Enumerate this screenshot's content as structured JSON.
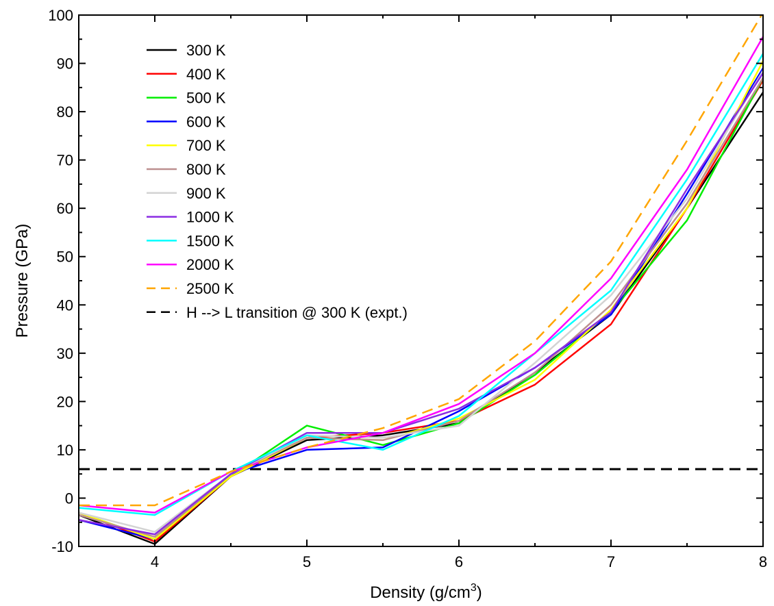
{
  "chart_data": {
    "type": "line",
    "title": "",
    "xlabel": "Density (g/cm",
    "xlabel_sup": "3",
    "xlabel_close": ")",
    "ylabel": "Pressure (GPa)",
    "xlim": [
      3.5,
      8
    ],
    "ylim": [
      -10,
      100
    ],
    "x_ticks": [
      4,
      5,
      6,
      7,
      8
    ],
    "y_ticks": [
      -10,
      0,
      10,
      20,
      30,
      40,
      50,
      60,
      70,
      80,
      90,
      100
    ],
    "grid": false,
    "legend_position": "top-left",
    "x": [
      3.5,
      4.0,
      4.5,
      5.0,
      5.5,
      6.0,
      6.5,
      7.0,
      7.5,
      8.0
    ],
    "series": [
      {
        "name": "300 K",
        "color": "#000000",
        "dash": "solid",
        "values": [
          -3.5,
          -9.5,
          4.5,
          12.0,
          13.0,
          15.5,
          26.0,
          38.0,
          60.0,
          84.0
        ]
      },
      {
        "name": "400 K",
        "color": "#ff0000",
        "dash": "solid",
        "values": [
          -3.0,
          -9.0,
          4.5,
          12.5,
          13.5,
          16.0,
          23.5,
          36.0,
          60.0,
          86.5
        ]
      },
      {
        "name": "500 K",
        "color": "#00ee00",
        "dash": "solid",
        "values": [
          -3.0,
          -8.5,
          4.5,
          15.0,
          11.0,
          15.5,
          25.5,
          38.5,
          57.5,
          87.0
        ]
      },
      {
        "name": "600 K",
        "color": "#0000ff",
        "dash": "solid",
        "values": [
          -4.5,
          -8.5,
          5.0,
          10.0,
          10.5,
          18.0,
          27.0,
          38.0,
          63.0,
          89.0
        ]
      },
      {
        "name": "700 K",
        "color": "#ffff00",
        "dash": "solid",
        "values": [
          -3.0,
          -8.5,
          4.5,
          12.5,
          12.0,
          16.5,
          24.5,
          39.0,
          60.0,
          90.5
        ]
      },
      {
        "name": "800 K",
        "color": "#bc8f8f",
        "dash": "solid",
        "values": [
          -3.5,
          -8.0,
          5.0,
          12.5,
          12.0,
          16.0,
          26.0,
          40.0,
          61.0,
          87.0
        ]
      },
      {
        "name": "900 K",
        "color": "#d3d3d3",
        "dash": "solid",
        "values": [
          -3.0,
          -7.0,
          5.0,
          13.0,
          12.5,
          15.0,
          28.0,
          42.0,
          62.0,
          88.5
        ]
      },
      {
        "name": "1000 K",
        "color": "#8a2be2",
        "dash": "solid",
        "values": [
          -4.5,
          -7.5,
          5.0,
          13.5,
          13.5,
          18.5,
          27.0,
          38.5,
          64.0,
          88.0
        ]
      },
      {
        "name": "1500 K",
        "color": "#00ffff",
        "dash": "solid",
        "values": [
          -2.0,
          -3.5,
          5.5,
          13.0,
          10.0,
          17.0,
          30.0,
          43.0,
          66.0,
          92.0
        ]
      },
      {
        "name": "2000 K",
        "color": "#ff00ff",
        "dash": "solid",
        "values": [
          -1.5,
          -3.0,
          5.5,
          10.5,
          13.5,
          19.5,
          30.0,
          45.5,
          68.0,
          95.5
        ]
      },
      {
        "name": "2500 K",
        "color": "#ffa500",
        "dash": "dashed",
        "values": [
          -1.5,
          -1.5,
          5.5,
          10.5,
          14.5,
          20.5,
          32.5,
          49.0,
          74.0,
          100.5
        ]
      }
    ],
    "reference_line": {
      "name": "H --> L transition @ 300 K (expt.)",
      "color": "#000000",
      "dash": "dashed",
      "y": 6.0
    }
  }
}
